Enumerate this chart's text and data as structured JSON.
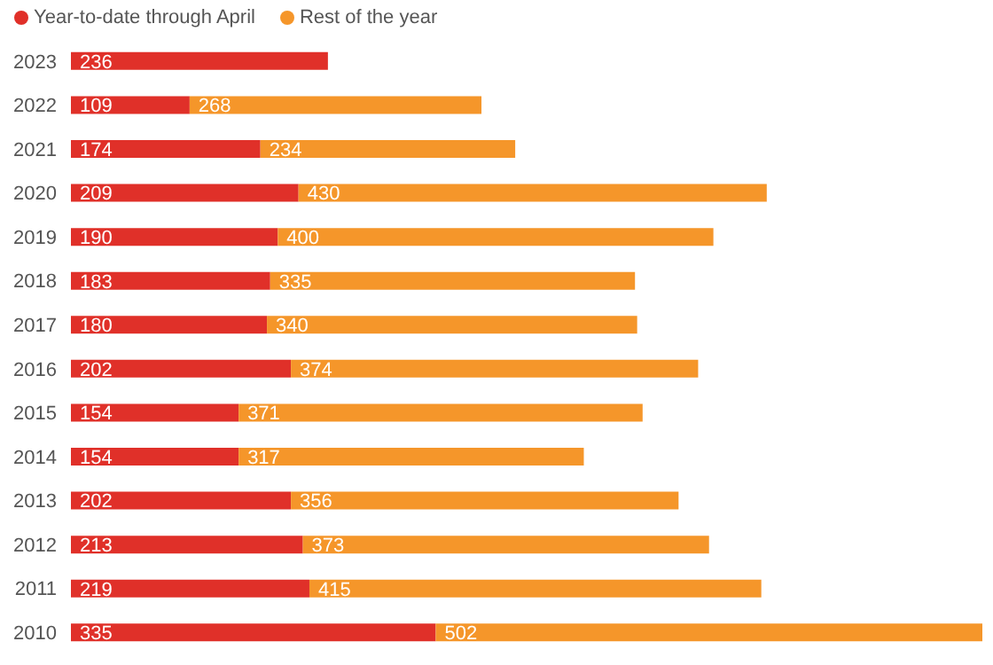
{
  "chart_data": {
    "type": "bar",
    "orientation": "horizontal",
    "stacked": true,
    "data_labels": true,
    "legend": "top left",
    "categories": [
      "2023",
      "2022",
      "2021",
      "2020",
      "2019",
      "2018",
      "2017",
      "2016",
      "2015",
      "2014",
      "2013",
      "2012",
      "2011",
      "2010"
    ],
    "series": [
      {
        "name": "Year-to-date through April",
        "color": "#e03029",
        "values": [
          236,
          109,
          174,
          209,
          190,
          183,
          180,
          202,
          154,
          154,
          202,
          213,
          219,
          335
        ]
      },
      {
        "name": "Rest of the year",
        "color": "#f5962a",
        "values": [
          null,
          268,
          234,
          430,
          400,
          335,
          340,
          374,
          371,
          317,
          356,
          373,
          415,
          502
        ]
      }
    ]
  }
}
